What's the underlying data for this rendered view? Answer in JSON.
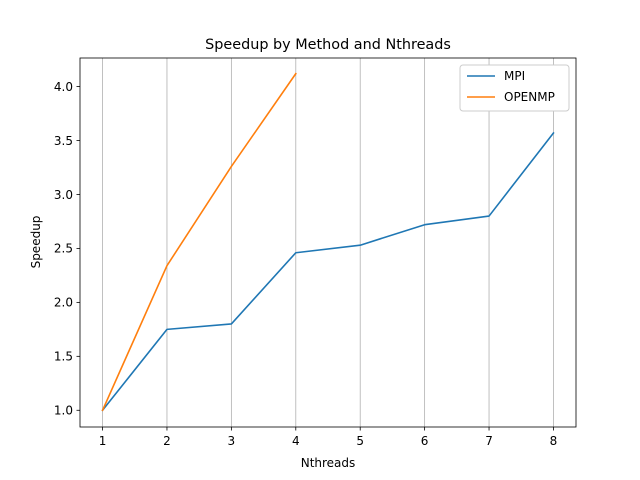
{
  "chart_data": {
    "type": "line",
    "title": "Speedup by Method and Nthreads",
    "xlabel": "Nthreads",
    "ylabel": "Speedup",
    "xlim": [
      0.65,
      8.35
    ],
    "ylim": [
      0.845,
      4.265
    ],
    "x_ticks": [
      1,
      2,
      3,
      4,
      5,
      6,
      7,
      8
    ],
    "x_tick_labels": [
      "1",
      "2",
      "3",
      "4",
      "5",
      "6",
      "7",
      "8"
    ],
    "y_ticks": [
      1.0,
      1.5,
      2.0,
      2.5,
      3.0,
      3.5,
      4.0
    ],
    "y_tick_labels": [
      "1.0",
      "1.5",
      "2.0",
      "2.5",
      "3.0",
      "3.5",
      "4.0"
    ],
    "grid": "x-axis vertical lines",
    "legend_position": "top-right",
    "series": [
      {
        "name": "MPI",
        "color": "#1f77b4",
        "x": [
          1,
          2,
          3,
          4,
          5,
          6,
          7,
          8
        ],
        "values": [
          1.0,
          1.75,
          1.8,
          2.46,
          2.53,
          2.72,
          2.8,
          3.57
        ]
      },
      {
        "name": "OPENMP",
        "color": "#ff7f0e",
        "x": [
          1,
          2,
          3,
          4
        ],
        "values": [
          1.0,
          2.34,
          3.26,
          4.12
        ]
      }
    ]
  }
}
